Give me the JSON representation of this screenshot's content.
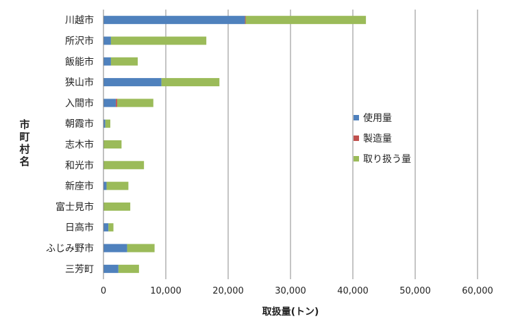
{
  "chart_data": {
    "type": "bar",
    "orientation": "horizontal",
    "stacked": true,
    "categories": [
      "川越市",
      "所沢市",
      "飯能市",
      "狭山市",
      "入間市",
      "朝霞市",
      "志木市",
      "和光市",
      "新座市",
      "富士見市",
      "日高市",
      "ふじみ野市",
      "三芳町"
    ],
    "series": [
      {
        "name": "使用量",
        "color": "#4F81BD",
        "values": [
          22700,
          1200,
          1200,
          9300,
          2000,
          300,
          0,
          0,
          500,
          0,
          800,
          3800,
          2400
        ]
      },
      {
        "name": "製造量",
        "color": "#C0504D",
        "values": [
          100,
          0,
          0,
          0,
          200,
          0,
          0,
          0,
          0,
          0,
          0,
          0,
          0
        ]
      },
      {
        "name": "取り扱う量",
        "color": "#9BBB59",
        "values": [
          19300,
          15300,
          4300,
          9300,
          5800,
          800,
          2900,
          6500,
          3500,
          4300,
          800,
          4400,
          3300
        ]
      }
    ],
    "xlabel": "取扱量(トン)",
    "ylabel": "市町村名",
    "xlim": [
      0,
      60000
    ],
    "xticks": [
      0,
      10000,
      20000,
      30000,
      40000,
      50000,
      60000
    ],
    "xtick_labels": [
      "0",
      "10,000",
      "20,000",
      "30,000",
      "40,000",
      "50,000",
      "60,000"
    ],
    "grid": "vertical",
    "legend": "right"
  }
}
